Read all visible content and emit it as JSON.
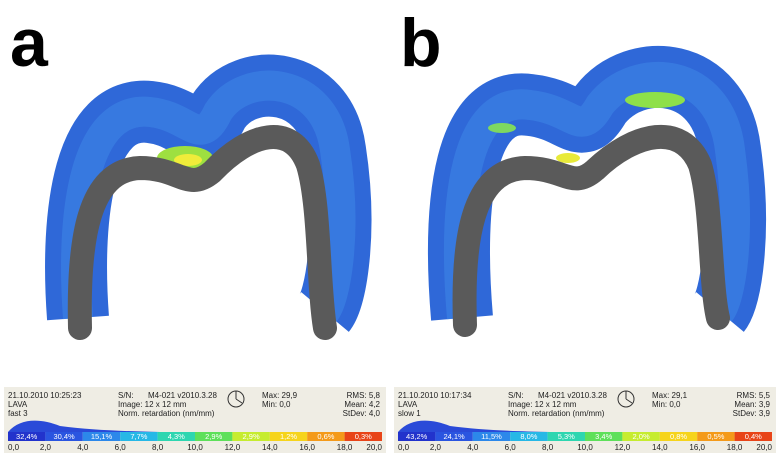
{
  "panels": [
    {
      "label": "a",
      "timestamp": "21.10.2010 10:25:23",
      "material": "LAVA",
      "sample": "fast 3",
      "sn_label": "S/N:",
      "sn": "M4-021 v2010.3.28",
      "image": "Image: 12 x 12 mm",
      "unit": "Norm. retardation (nm/mm)",
      "max": "Max: 29,9",
      "min": "Min: 0,0",
      "rms": "RMS:  5,8",
      "mean": "Mean: 4,2",
      "stdev": "StDev: 4,0",
      "percentages": [
        "32,4%",
        "30,4%",
        "15,1%",
        "7,7%",
        "4,3%",
        "2,9%",
        "2,9%",
        "1,2%",
        "0,6%",
        "0,3%"
      ],
      "scale": [
        "0,0",
        "2,0",
        "4,0",
        "6,0",
        "8,0",
        "10,0",
        "12,0",
        "14,0",
        "16,0",
        "18,0",
        "20,0"
      ]
    },
    {
      "label": "b",
      "timestamp": "21.10.2010 10:17:34",
      "material": "LAVA",
      "sample": "slow 1",
      "sn_label": "S/N:",
      "sn": "M4-021 v2010.3.28",
      "image": "Image: 12 x 12 mm",
      "unit": "Norm. retardation (nm/mm)",
      "max": "Max: 29,1",
      "min": "Min: 0,0",
      "rms": "RMS:  5,5",
      "mean": "Mean: 3,9",
      "stdev": "StDev: 3,9",
      "percentages": [
        "43,2%",
        "24,1%",
        "11,5%",
        "8,0%",
        "5,3%",
        "3,4%",
        "2,0%",
        "0,8%",
        "0,5%",
        "0,4%"
      ],
      "scale": [
        "0,0",
        "2,0",
        "4,0",
        "6,0",
        "8,0",
        "10,0",
        "12,0",
        "14,0",
        "16,0",
        "18,0",
        "20,0"
      ]
    }
  ]
}
